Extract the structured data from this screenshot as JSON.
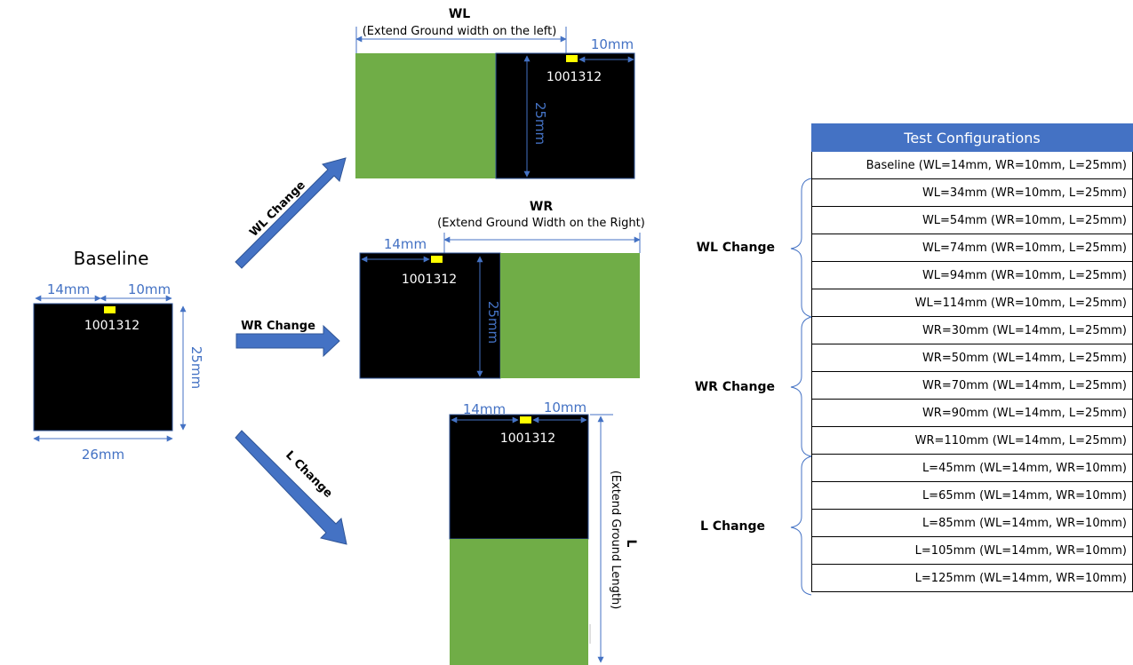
{
  "colors": {
    "board": "#000000",
    "ground_extension": "#70ad47",
    "chip": "#ffff00",
    "dimension": "#4472c4",
    "table_header": "#4472c4"
  },
  "baseline": {
    "title": "Baseline",
    "chip_label": "1001312",
    "dim_left": "14mm",
    "dim_right": "10mm",
    "dim_height": "25mm",
    "dim_width": "26mm"
  },
  "arrows": {
    "wl": "WL Change",
    "wr": "WR Change",
    "l": "L Change"
  },
  "wl_config": {
    "title": "WL",
    "subtitle": "(Extend Ground width on the left)",
    "dim_right": "10mm",
    "dim_height": "25mm",
    "chip_label": "1001312"
  },
  "wr_config": {
    "title": "WR",
    "subtitle": "(Extend Ground Width on the Right)",
    "dim_left": "14mm",
    "dim_height": "25mm",
    "chip_label": "1001312"
  },
  "l_config": {
    "title": "L",
    "subtitle": "(Extend Ground Length)",
    "dim_left": "14mm",
    "dim_right": "10mm",
    "chip_label": "1001312"
  },
  "table": {
    "header": "Test  Configurations",
    "rows": [
      "Baseline (WL=14mm, WR=10mm, L=25mm)",
      "WL=34mm (WR=10mm, L=25mm)",
      "WL=54mm (WR=10mm, L=25mm)",
      "WL=74mm (WR=10mm, L=25mm)",
      "WL=94mm (WR=10mm, L=25mm)",
      "WL=114mm (WR=10mm, L=25mm)",
      "WR=30mm (WL=14mm, L=25mm)",
      "WR=50mm (WL=14mm, L=25mm)",
      "WR=70mm (WL=14mm, L=25mm)",
      "WR=90mm (WL=14mm, L=25mm)",
      "WR=110mm (WL=14mm, L=25mm)",
      "L=45mm (WL=14mm, WR=10mm)",
      "L=65mm (WL=14mm, WR=10mm)",
      "L=85mm (WL=14mm, WR=10mm)",
      "L=105mm (WL=14mm, WR=10mm)",
      "L=125mm (WL=14mm, WR=10mm)"
    ]
  },
  "groups": {
    "wl": "WL Change",
    "wr": "WR Change",
    "l": "L Change"
  }
}
